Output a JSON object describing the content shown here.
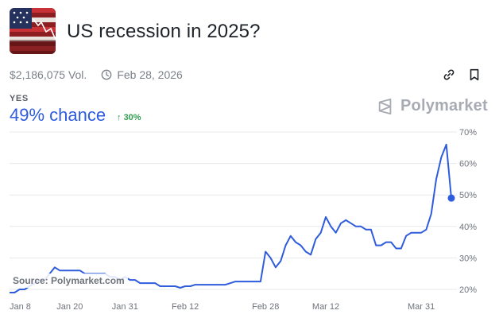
{
  "header": {
    "title": "US recession in 2025?",
    "volume": "$2,186,075 Vol.",
    "end_date": "Feb 28, 2026"
  },
  "outcome": {
    "label": "YES",
    "chance": "49% chance",
    "change": "30%"
  },
  "brand": {
    "name": "Polymarket"
  },
  "source": "Source: Polymarket.com",
  "icons": {
    "clock": "clock-icon",
    "link": "link-icon",
    "bookmark": "bookmark-icon",
    "logo": "polymarket-logo-icon"
  },
  "colors": {
    "line": "#2e5cdc",
    "delta": "#2f9e4f",
    "grid": "#e6e8eb"
  },
  "chart_data": {
    "type": "line",
    "title": "",
    "xlabel": "",
    "ylabel": "",
    "ylim": [
      18,
      72
    ],
    "yticks": [
      20,
      30,
      40,
      50,
      60,
      70
    ],
    "ytick_labels": [
      "20%",
      "30%",
      "40%",
      "50%",
      "60%",
      "70%"
    ],
    "xticks": [
      "2025-01-08",
      "2025-01-20",
      "2025-01-31",
      "2025-02-12",
      "2025-02-28",
      "2025-03-12",
      "2025-03-31"
    ],
    "xtick_labels": [
      "Jan 8",
      "Jan 20",
      "Jan 31",
      "Feb 12",
      "Feb 28",
      "Mar 12",
      "Mar 31"
    ],
    "x_end": "2025-04-06",
    "grid": true,
    "series": [
      {
        "name": "",
        "x": [
          "2025-01-08",
          "2025-01-09",
          "2025-01-10",
          "2025-01-11",
          "2025-01-12",
          "2025-01-13",
          "2025-01-14",
          "2025-01-15",
          "2025-01-16",
          "2025-01-17",
          "2025-01-18",
          "2025-01-19",
          "2025-01-20",
          "2025-01-21",
          "2025-01-22",
          "2025-01-23",
          "2025-01-24",
          "2025-01-25",
          "2025-01-26",
          "2025-01-27",
          "2025-01-28",
          "2025-01-29",
          "2025-01-30",
          "2025-01-31",
          "2025-02-01",
          "2025-02-02",
          "2025-02-03",
          "2025-02-04",
          "2025-02-05",
          "2025-02-06",
          "2025-02-07",
          "2025-02-08",
          "2025-02-09",
          "2025-02-10",
          "2025-02-11",
          "2025-02-12",
          "2025-02-13",
          "2025-02-14",
          "2025-02-15",
          "2025-02-16",
          "2025-02-17",
          "2025-02-18",
          "2025-02-19",
          "2025-02-20",
          "2025-02-21",
          "2025-02-22",
          "2025-02-23",
          "2025-02-24",
          "2025-02-25",
          "2025-02-26",
          "2025-02-27",
          "2025-02-28",
          "2025-03-01",
          "2025-03-02",
          "2025-03-03",
          "2025-03-04",
          "2025-03-05",
          "2025-03-06",
          "2025-03-07",
          "2025-03-08",
          "2025-03-09",
          "2025-03-10",
          "2025-03-11",
          "2025-03-12",
          "2025-03-13",
          "2025-03-14",
          "2025-03-15",
          "2025-03-16",
          "2025-03-17",
          "2025-03-18",
          "2025-03-19",
          "2025-03-20",
          "2025-03-21",
          "2025-03-22",
          "2025-03-23",
          "2025-03-24",
          "2025-03-25",
          "2025-03-26",
          "2025-03-27",
          "2025-03-28",
          "2025-03-29",
          "2025-03-30",
          "2025-03-31",
          "2025-04-01",
          "2025-04-02",
          "2025-04-03",
          "2025-04-04",
          "2025-04-05",
          "2025-04-06"
        ],
        "values": [
          19,
          19,
          20,
          20,
          21,
          22,
          23,
          23,
          25,
          27,
          26,
          26,
          26,
          26,
          26,
          25,
          25,
          25,
          25,
          25,
          24,
          24,
          23,
          24,
          23,
          23,
          22,
          22,
          22,
          22,
          21,
          21,
          21,
          21,
          20.5,
          21,
          21,
          21.5,
          21.5,
          21.5,
          21.5,
          21.5,
          21.5,
          21.5,
          22,
          22.5,
          22.5,
          22.5,
          22.5,
          22.5,
          22.5,
          32,
          30,
          27,
          29,
          34,
          37,
          35,
          34,
          32,
          31,
          36,
          38,
          43,
          40,
          38,
          41,
          42,
          41,
          40,
          40,
          39,
          39,
          34,
          34,
          35,
          35,
          33,
          33,
          37,
          38,
          38,
          38,
          39,
          44,
          55,
          62,
          66,
          49
        ]
      }
    ]
  }
}
